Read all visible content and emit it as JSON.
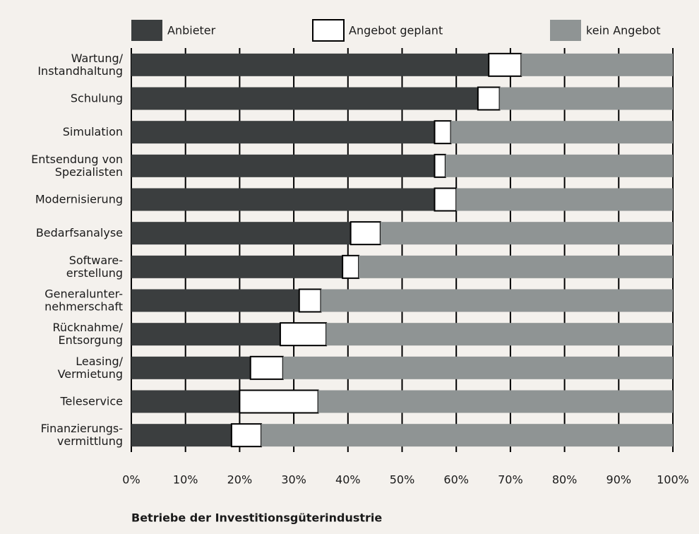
{
  "chart_data": {
    "type": "stacked-barh",
    "categories": [
      [
        "Wartung/",
        "Instandhaltung"
      ],
      [
        "Schulung"
      ],
      [
        "Simulation"
      ],
      [
        "Entsendung von",
        "Spezialisten"
      ],
      [
        "Modernisierung"
      ],
      [
        "Bedarfsanalyse"
      ],
      [
        "Software-",
        "erstellung"
      ],
      [
        "Generalunter-",
        "nehmerschaft"
      ],
      [
        "Rücknahme/",
        "Entsorgung"
      ],
      [
        "Leasing/",
        "Vermietung"
      ],
      [
        "Teleservice"
      ],
      [
        "Finanzierungs-",
        "vermittlung"
      ]
    ],
    "series": [
      {
        "name": "Anbieter",
        "color": "#3b3e3f",
        "values": [
          66,
          64,
          56,
          56,
          56,
          40.5,
          39,
          31,
          27.5,
          22,
          20,
          18.5
        ]
      },
      {
        "name": "Angebot geplant",
        "color": "#ffffff",
        "values": [
          6,
          4,
          3,
          2,
          4,
          5.5,
          3,
          4,
          8.5,
          6,
          14.5,
          5.5
        ]
      },
      {
        "name": "kein Angebot",
        "color": "#8f9494",
        "values": [
          28,
          32,
          41,
          42,
          40,
          54,
          58,
          65,
          64,
          72,
          65.5,
          76
        ]
      }
    ],
    "xlim": [
      0,
      100
    ],
    "xticks": [
      {
        "value": 0,
        "label": "0%"
      },
      {
        "value": 10,
        "label": "10%"
      },
      {
        "value": 20,
        "label": "20%"
      },
      {
        "value": 30,
        "label": "30%"
      },
      {
        "value": 40,
        "label": "40%"
      },
      {
        "value": 50,
        "label": "50%"
      },
      {
        "value": 60,
        "label": "60%"
      },
      {
        "value": 70,
        "label": "70%"
      },
      {
        "value": 80,
        "label": "80%"
      },
      {
        "value": 90,
        "label": "90%"
      },
      {
        "value": 100,
        "label": "100%"
      }
    ],
    "grid": true,
    "legend": "top",
    "xlabel": "Betriebe der Investitionsgüterindustrie"
  }
}
